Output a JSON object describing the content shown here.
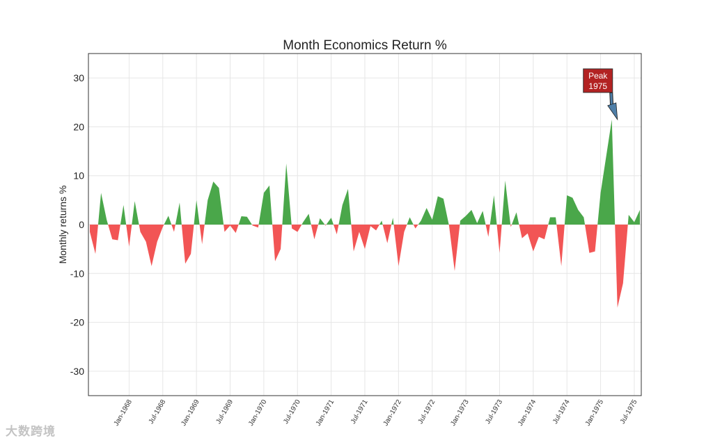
{
  "chart_data": {
    "type": "area",
    "title": "Month Economics Return %",
    "xlabel": "",
    "ylabel": "Monthly returns %",
    "ylim": [
      -35,
      35
    ],
    "yticks": [
      -30,
      -20,
      -10,
      0,
      10,
      20,
      30
    ],
    "xtick_labels": [
      "Jan-1968",
      "Jul-1968",
      "Jan-1969",
      "Jul-1969",
      "Jan-1970",
      "Jul-1970",
      "Jan-1971",
      "Jul-1971",
      "Jan-1972",
      "Jul-1972",
      "Jan-1973",
      "Jul-1973",
      "Jan-1974",
      "Jul-1974",
      "Jan-1975",
      "Jul-1975"
    ],
    "xtick_months": [
      7,
      13,
      19,
      25,
      31,
      37,
      43,
      49,
      55,
      61,
      67,
      73,
      79,
      85,
      91,
      97
    ],
    "x_start_label": "Jun-1967",
    "x_end_label": "Sep-1975",
    "grid": true,
    "positive_color": "#4aa74a",
    "negative_color": "#f25555",
    "annotation": {
      "text_line1": "Peak",
      "text_line2": "1975",
      "x_month": 94,
      "y": 21.5,
      "box_color": "#b22222",
      "arrow_color": "#4f7fa8"
    },
    "series": [
      {
        "name": "",
        "values": [
          -1.5,
          -6.0,
          6.5,
          1.0,
          -3.0,
          -3.2,
          4.0,
          -4.5,
          4.8,
          -1.5,
          -3.5,
          -8.5,
          -3.5,
          -0.5,
          1.8,
          -1.5,
          4.5,
          -8.0,
          -6.0,
          5.0,
          -4.0,
          5.0,
          8.8,
          7.5,
          -1.5,
          -0.2,
          -1.7,
          1.7,
          1.6,
          -0.2,
          -0.6,
          6.5,
          8.0,
          -7.5,
          -5.0,
          12.5,
          -0.8,
          -1.5,
          0.5,
          2.2,
          -3.0,
          1.3,
          -0.2,
          1.4,
          -2.0,
          4.0,
          7.3,
          -5.5,
          -1.5,
          -5.0,
          -0.3,
          -1.2,
          0.8,
          -3.8,
          1.4,
          -8.5,
          -1.5,
          1.5,
          -0.8,
          0.8,
          3.4,
          1.0,
          5.8,
          5.3,
          -0.2,
          -9.5,
          0.8,
          1.8,
          3.0,
          0.3,
          2.8,
          -2.5,
          6.0,
          -5.8,
          9.0,
          -0.5,
          2.5,
          -2.8,
          -1.8,
          -5.5,
          -2.5,
          -3.0,
          1.5,
          1.5,
          -8.5,
          6.0,
          5.5,
          3.0,
          1.5,
          -5.8,
          -5.5,
          6.5,
          14.0,
          21.5,
          -17.0,
          -12.0,
          2.0,
          0.5,
          3.0
        ]
      }
    ]
  },
  "watermark": "大数跨境"
}
